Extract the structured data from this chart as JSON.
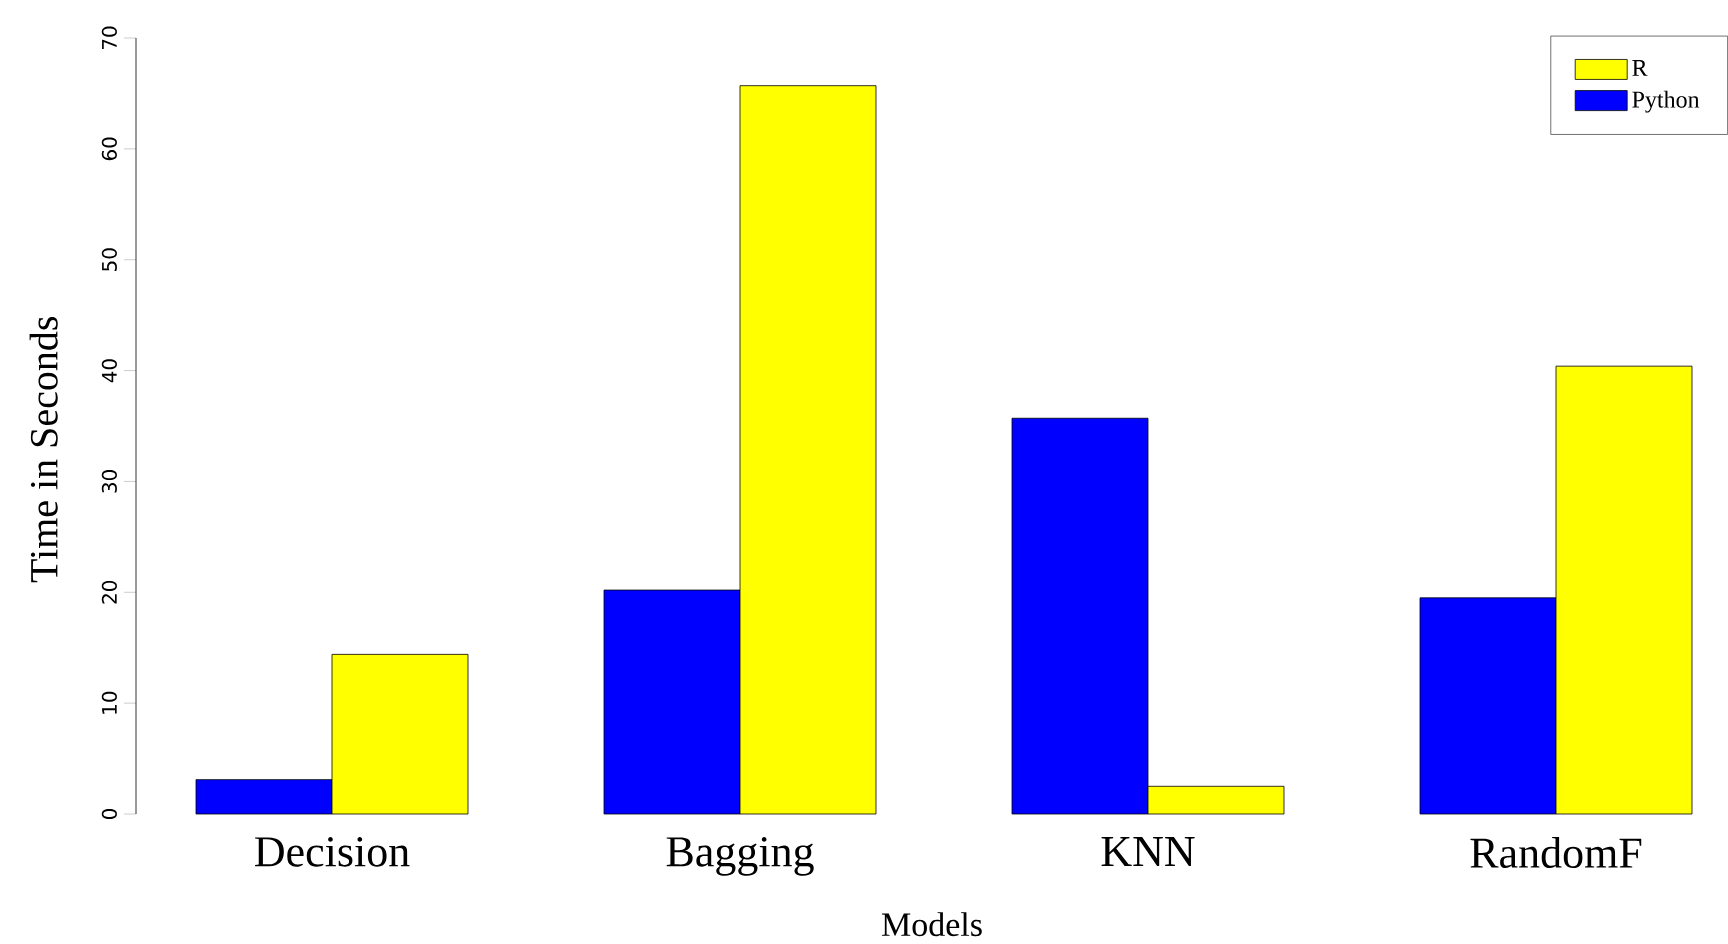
{
  "chart_data": {
    "type": "bar",
    "xlabel": "Models",
    "ylabel": "Time in Seconds",
    "categories": [
      "Decision",
      "Bagging",
      "KNN",
      "RandomF"
    ],
    "series": [
      {
        "name": "Python",
        "color": "#0000ff",
        "values": [
          3.1,
          20.2,
          35.7,
          19.5
        ]
      },
      {
        "name": "R",
        "color": "#ffff00",
        "values": [
          14.4,
          65.7,
          2.5,
          40.4
        ]
      }
    ],
    "ylim": [
      0,
      70
    ],
    "yticks": [
      0,
      10,
      20,
      30,
      40,
      50,
      60,
      70
    ],
    "legend": "top right"
  }
}
